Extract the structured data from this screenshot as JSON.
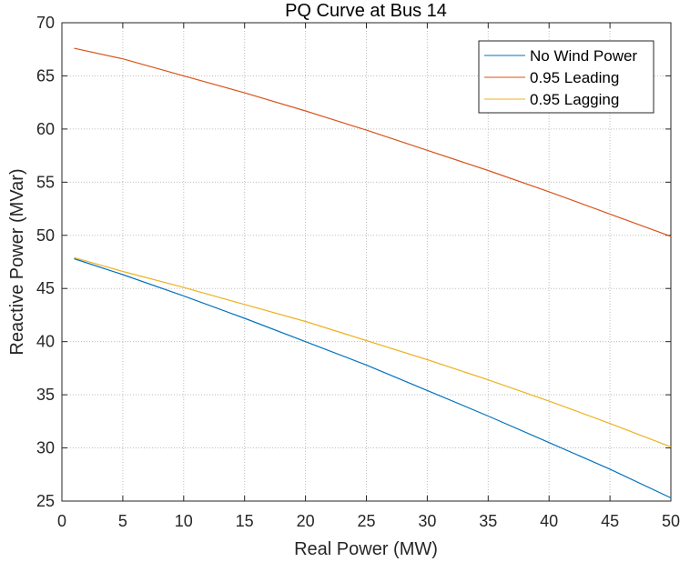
{
  "chart_data": {
    "type": "line",
    "title": "PQ Curve at Bus 14",
    "xlabel": "Real Power (MW)",
    "ylabel": "Reactive Power (MVar)",
    "xlim": [
      0,
      50
    ],
    "ylim": [
      25,
      70
    ],
    "xticks": [
      0,
      5,
      10,
      15,
      20,
      25,
      30,
      35,
      40,
      45,
      50
    ],
    "yticks": [
      25,
      30,
      35,
      40,
      45,
      50,
      55,
      60,
      65,
      70
    ],
    "grid": true,
    "legend_position": "top-right",
    "series": [
      {
        "name": "No Wind Power",
        "color": "#0072BD",
        "x": [
          1,
          5,
          10,
          15,
          20,
          25,
          30,
          35,
          40,
          45,
          50
        ],
        "y": [
          47.8,
          46.3,
          44.3,
          42.2,
          40.0,
          37.8,
          35.4,
          33.0,
          30.5,
          28.0,
          25.3
        ]
      },
      {
        "name": "0.95 Leading",
        "color": "#D95319",
        "x": [
          1,
          5,
          10,
          15,
          20,
          25,
          30,
          35,
          40,
          45,
          50
        ],
        "y": [
          67.6,
          66.6,
          65.0,
          63.4,
          61.7,
          59.9,
          58.0,
          56.1,
          54.1,
          52.0,
          49.9
        ]
      },
      {
        "name": "0.95 Lagging",
        "color": "#EDB120",
        "x": [
          1,
          5,
          10,
          15,
          20,
          25,
          30,
          35,
          40,
          45,
          50
        ],
        "y": [
          47.9,
          46.6,
          45.1,
          43.5,
          41.9,
          40.1,
          38.3,
          36.4,
          34.4,
          32.3,
          30.1
        ]
      }
    ]
  }
}
